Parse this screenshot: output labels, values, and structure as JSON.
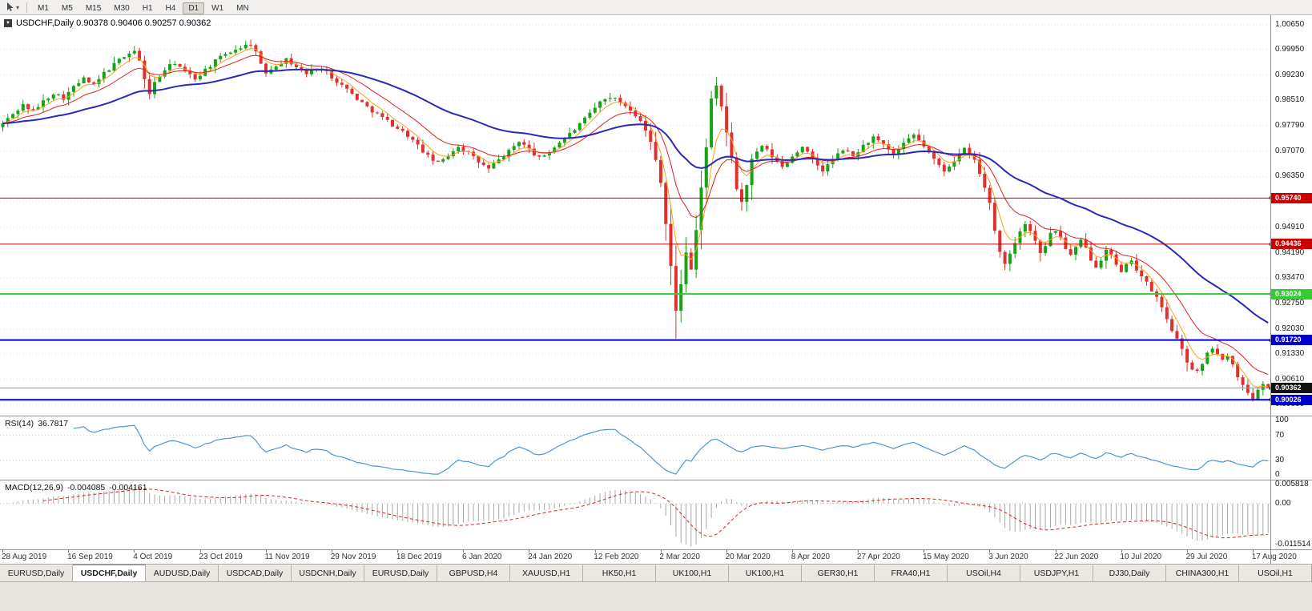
{
  "toolbar": {
    "timeframes": [
      "M1",
      "M5",
      "M15",
      "M30",
      "H1",
      "H4",
      "D1",
      "W1",
      "MN"
    ],
    "active_timeframe": "D1"
  },
  "tabs": {
    "items": [
      "EURUSD,Daily",
      "USDCHF,Daily",
      "AUDUSD,Daily",
      "USDCAD,Daily",
      "USDCNH,Daily",
      "EURUSD,Daily",
      "GBPUSD,H4",
      "XAUUSD,H1",
      "HK50,H1",
      "UK100,H1",
      "UK100,H1",
      "GER30,H1",
      "FRA40,H1",
      "USOil,H4",
      "USDJPY,H1",
      "DJ30,Daily",
      "CHINA300,H1",
      "USOil,H1"
    ],
    "active_index": 1
  },
  "chart_data": {
    "type": "candlestick",
    "symbol": "USDCHF",
    "timeframe": "Daily",
    "header": "USDCHF,Daily 0.90378 0.90406 0.90257 0.90362",
    "ohlc": {
      "open": 0.90378,
      "high": 0.90406,
      "low": 0.90257,
      "close": 0.90362
    },
    "bar_count": 251,
    "bars_per_label": 13,
    "x_labels": [
      "28 Aug 2019",
      "16 Sep 2019",
      "4 Oct 2019",
      "23 Oct 2019",
      "11 Nov 2019",
      "29 Nov 2019",
      "18 Dec 2019",
      "6 Jan 2020",
      "24 Jan 2020",
      "12 Feb 2020",
      "2 Mar 2020",
      "20 Mar 2020",
      "8 Apr 2020",
      "27 Apr 2020",
      "15 May 2020",
      "3 Jun 2020",
      "22 Jun 2020",
      "10 Jul 2020",
      "29 Jul 2020",
      "17 Aug 2020"
    ],
    "y_axis": {
      "top_price": 1.0092,
      "bottom_price": 0.8958,
      "labels": [
        "1.00650",
        "0.99950",
        "0.99230",
        "0.98510",
        "0.97790",
        "0.97070",
        "0.96350",
        "0.95630",
        "0.94910",
        "0.94190",
        "0.93470",
        "0.92750",
        "0.92030",
        "0.91330",
        "0.90610",
        "0.89890"
      ]
    },
    "price_path": [
      [
        0,
        0.9785
      ],
      [
        2,
        0.9812
      ],
      [
        4,
        0.9838
      ],
      [
        6,
        0.982
      ],
      [
        8,
        0.9848
      ],
      [
        10,
        0.9872
      ],
      [
        12,
        0.9858
      ],
      [
        14,
        0.9888
      ],
      [
        16,
        0.9912
      ],
      [
        18,
        0.9892
      ],
      [
        20,
        0.9928
      ],
      [
        22,
        0.9952
      ],
      [
        24,
        0.9978
      ],
      [
        26,
        0.9992
      ],
      [
        27,
        0.9962
      ],
      [
        28,
        0.9908
      ],
      [
        29,
        0.9872
      ],
      [
        30,
        0.99
      ],
      [
        32,
        0.9938
      ],
      [
        34,
        0.9958
      ],
      [
        36,
        0.9932
      ],
      [
        38,
        0.9912
      ],
      [
        40,
        0.9938
      ],
      [
        42,
        0.9962
      ],
      [
        44,
        0.9982
      ],
      [
        46,
        0.9996
      ],
      [
        48,
        1.0006
      ],
      [
        49,
        1.0012
      ],
      [
        50,
        0.9988
      ],
      [
        51,
        0.995
      ],
      [
        52,
        0.993
      ],
      [
        54,
        0.9952
      ],
      [
        56,
        0.9966
      ],
      [
        58,
        0.9946
      ],
      [
        60,
        0.9926
      ],
      [
        62,
        0.9946
      ],
      [
        64,
        0.993
      ],
      [
        66,
        0.9906
      ],
      [
        68,
        0.9882
      ],
      [
        70,
        0.9856
      ],
      [
        72,
        0.9832
      ],
      [
        74,
        0.9812
      ],
      [
        76,
        0.9792
      ],
      [
        78,
        0.9772
      ],
      [
        80,
        0.9752
      ],
      [
        82,
        0.9722
      ],
      [
        84,
        0.9692
      ],
      [
        86,
        0.9672
      ],
      [
        88,
        0.9696
      ],
      [
        90,
        0.9722
      ],
      [
        92,
        0.9702
      ],
      [
        94,
        0.9676
      ],
      [
        96,
        0.9656
      ],
      [
        98,
        0.9682
      ],
      [
        100,
        0.9706
      ],
      [
        102,
        0.9736
      ],
      [
        104,
        0.9712
      ],
      [
        106,
        0.9686
      ],
      [
        108,
        0.9706
      ],
      [
        110,
        0.9732
      ],
      [
        112,
        0.9756
      ],
      [
        114,
        0.9782
      ],
      [
        116,
        0.9812
      ],
      [
        118,
        0.9846
      ],
      [
        120,
        0.9862
      ],
      [
        122,
        0.9846
      ],
      [
        124,
        0.9826
      ],
      [
        126,
        0.9796
      ],
      [
        128,
        0.9732
      ],
      [
        129,
        0.9682
      ],
      [
        130,
        0.9622
      ],
      [
        131,
        0.9502
      ],
      [
        132,
        0.9382
      ],
      [
        133,
        0.9252
      ],
      [
        134,
        0.9332
      ],
      [
        135,
        0.9422
      ],
      [
        136,
        0.9372
      ],
      [
        137,
        0.9482
      ],
      [
        138,
        0.9602
      ],
      [
        139,
        0.9722
      ],
      [
        140,
        0.9852
      ],
      [
        141,
        0.9888
      ],
      [
        142,
        0.9832
      ],
      [
        143,
        0.9762
      ],
      [
        144,
        0.9682
      ],
      [
        145,
        0.9602
      ],
      [
        146,
        0.9562
      ],
      [
        147,
        0.9612
      ],
      [
        148,
        0.9682
      ],
      [
        150,
        0.9722
      ],
      [
        152,
        0.9692
      ],
      [
        154,
        0.9662
      ],
      [
        156,
        0.9692
      ],
      [
        158,
        0.9722
      ],
      [
        160,
        0.9682
      ],
      [
        162,
        0.9652
      ],
      [
        164,
        0.9682
      ],
      [
        166,
        0.9712
      ],
      [
        168,
        0.9692
      ],
      [
        170,
        0.9722
      ],
      [
        172,
        0.9746
      ],
      [
        174,
        0.9722
      ],
      [
        176,
        0.9696
      ],
      [
        178,
        0.9726
      ],
      [
        180,
        0.9752
      ],
      [
        182,
        0.9722
      ],
      [
        184,
        0.9682
      ],
      [
        186,
        0.9652
      ],
      [
        188,
        0.9682
      ],
      [
        190,
        0.9712
      ],
      [
        192,
        0.9682
      ],
      [
        193,
        0.9642
      ],
      [
        194,
        0.9602
      ],
      [
        195,
        0.9562
      ],
      [
        196,
        0.9482
      ],
      [
        197,
        0.9422
      ],
      [
        198,
        0.9392
      ],
      [
        199,
        0.9412
      ],
      [
        200,
        0.9452
      ],
      [
        201,
        0.9482
      ],
      [
        202,
        0.9502
      ],
      [
        203,
        0.9482
      ],
      [
        204,
        0.9452
      ],
      [
        205,
        0.9422
      ],
      [
        206,
        0.9442
      ],
      [
        207,
        0.9472
      ],
      [
        208,
        0.9482
      ],
      [
        209,
        0.9462
      ],
      [
        210,
        0.9432
      ],
      [
        211,
        0.9412
      ],
      [
        212,
        0.9432
      ],
      [
        213,
        0.9452
      ],
      [
        214,
        0.9432
      ],
      [
        215,
        0.9402
      ],
      [
        216,
        0.9382
      ],
      [
        217,
        0.9402
      ],
      [
        218,
        0.9432
      ],
      [
        219,
        0.9412
      ],
      [
        220,
        0.9382
      ],
      [
        221,
        0.9362
      ],
      [
        222,
        0.9382
      ],
      [
        223,
        0.9402
      ],
      [
        224,
        0.9372
      ],
      [
        225,
        0.9352
      ],
      [
        226,
        0.9332
      ],
      [
        227,
        0.9312
      ],
      [
        228,
        0.9292
      ],
      [
        229,
        0.9262
      ],
      [
        230,
        0.9232
      ],
      [
        231,
        0.9202
      ],
      [
        232,
        0.9172
      ],
      [
        233,
        0.9142
      ],
      [
        234,
        0.9112
      ],
      [
        235,
        0.9092
      ],
      [
        236,
        0.9082
      ],
      [
        237,
        0.9102
      ],
      [
        238,
        0.9132
      ],
      [
        239,
        0.9152
      ],
      [
        240,
        0.9132
      ],
      [
        241,
        0.9112
      ],
      [
        242,
        0.9132
      ],
      [
        243,
        0.9102
      ],
      [
        244,
        0.9072
      ],
      [
        245,
        0.9042
      ],
      [
        246,
        0.9022
      ],
      [
        247,
        0.9008
      ],
      [
        248,
        0.9032
      ],
      [
        249,
        0.9052
      ],
      [
        250,
        0.9036
      ]
    ],
    "wick_overrides": [
      {
        "bar": 26,
        "high": 1.0005
      },
      {
        "bar": 49,
        "high": 1.0023
      },
      {
        "bar": 120,
        "high": 0.9872
      },
      {
        "bar": 133,
        "low": 0.9176
      },
      {
        "bar": 141,
        "high": 0.9912
      },
      {
        "bar": 247,
        "low": 0.8998
      }
    ],
    "levels": [
      {
        "price": 0.9574,
        "label": "0.95740",
        "color": "#cc0000",
        "width": 1
      },
      {
        "price": 0.94436,
        "label": "0.94436",
        "color": "#cc0000",
        "width": 1
      },
      {
        "price": 0.93024,
        "label": "0.93024",
        "color": "#33cc33",
        "width": 2
      },
      {
        "price": 0.9172,
        "label": "0.91720",
        "color": "#0000cc",
        "width": 2
      },
      {
        "price": 0.90026,
        "label": "0.90026",
        "color": "#0000cc",
        "width": 2
      }
    ],
    "current_price": {
      "value": 0.90362,
      "label": "0.90362",
      "line_color": "#9a9a9a",
      "badge_color": "#111111"
    },
    "moving_averages": [
      {
        "period": 5,
        "color": "#ff9f1a",
        "width": 1
      },
      {
        "period": 13,
        "color": "#e02020",
        "width": 1
      },
      {
        "period": 42,
        "color": "#2929b8",
        "width": 2
      }
    ],
    "candle_colors": {
      "up": "#17a317",
      "down": "#e03030"
    },
    "grid_color": "#e0e0e0",
    "rsi_panel": {
      "label": "RSI(14)",
      "value": "36.7817",
      "period": 14,
      "color": "#4f93d4",
      "levels": [
        "100",
        "70",
        "30",
        "0"
      ],
      "level_values": [
        100,
        70,
        30,
        0
      ],
      "guide_levels": [
        70,
        30
      ]
    },
    "macd_panel": {
      "label": "MACD(12,26,9)",
      "value1": "-0.004085",
      "value2": "-0.004161",
      "fast": 12,
      "slow": 26,
      "signal": 9,
      "histogram_color": "#a8a8a8",
      "signal_color": "#e02020",
      "axis_max": 0.005818,
      "axis_min": -0.011514,
      "labels": [
        "0.005818",
        "0.00",
        "-0.011514"
      ]
    }
  }
}
